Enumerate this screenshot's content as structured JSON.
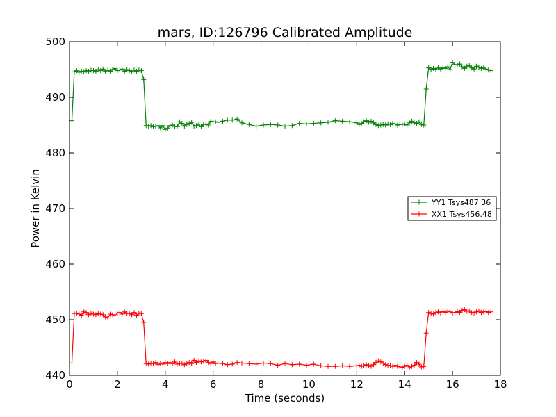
{
  "chart_data": {
    "type": "line",
    "title": "mars, ID:126796 Calibrated Amplitude",
    "xlabel": "Time (seconds)",
    "ylabel": "Power in Kelvin",
    "xlim": [
      0,
      18
    ],
    "ylim": [
      440,
      500
    ],
    "xticks": [
      0,
      2,
      4,
      6,
      8,
      10,
      12,
      14,
      16,
      18
    ],
    "yticks": [
      440,
      450,
      460,
      470,
      480,
      490,
      500
    ],
    "grid": false,
    "legend_position": "center-right",
    "series": [
      {
        "name": "YY1 Tsys487.36",
        "color": "#008000",
        "marker": "plus",
        "x": [
          0.1,
          0.2,
          0.3,
          0.4,
          0.5,
          0.6,
          0.7,
          0.8,
          0.9,
          1.0,
          1.1,
          1.2,
          1.3,
          1.4,
          1.5,
          1.6,
          1.7,
          1.8,
          1.9,
          2.0,
          2.1,
          2.2,
          2.3,
          2.4,
          2.5,
          2.6,
          2.7,
          2.8,
          2.9,
          3.0,
          3.1,
          3.2,
          3.3,
          3.4,
          3.5,
          3.6,
          3.7,
          3.8,
          3.9,
          4.0,
          4.1,
          4.2,
          4.3,
          4.4,
          4.5,
          4.6,
          4.7,
          4.8,
          4.9,
          5.0,
          5.1,
          5.2,
          5.3,
          5.4,
          5.5,
          5.6,
          5.7,
          5.8,
          5.9,
          6.0,
          6.1,
          6.2,
          6.4,
          6.6,
          6.8,
          7.0,
          7.2,
          7.5,
          7.8,
          8.1,
          8.4,
          8.7,
          9.0,
          9.3,
          9.6,
          9.9,
          10.2,
          10.5,
          10.8,
          11.1,
          11.4,
          11.7,
          12.0,
          12.1,
          12.2,
          12.3,
          12.4,
          12.5,
          12.6,
          12.7,
          12.8,
          12.9,
          13.0,
          13.1,
          13.2,
          13.3,
          13.4,
          13.5,
          13.6,
          13.7,
          13.8,
          13.9,
          14.0,
          14.1,
          14.2,
          14.3,
          14.4,
          14.5,
          14.6,
          14.7,
          14.8,
          14.9,
          15.0,
          15.1,
          15.2,
          15.3,
          15.4,
          15.5,
          15.6,
          15.7,
          15.8,
          15.9,
          16.0,
          16.1,
          16.2,
          16.3,
          16.4,
          16.5,
          16.6,
          16.7,
          16.8,
          16.9,
          17.0,
          17.1,
          17.2,
          17.3,
          17.4,
          17.5,
          17.6
        ],
        "y": [
          485.8,
          494.6,
          494.8,
          494.5,
          494.7,
          494.6,
          494.8,
          494.7,
          494.9,
          494.8,
          494.7,
          495.0,
          494.8,
          495.1,
          494.6,
          494.9,
          494.7,
          495.0,
          495.2,
          494.8,
          494.9,
          495.1,
          494.7,
          495.0,
          494.8,
          494.6,
          494.9,
          494.7,
          494.9,
          494.8,
          493.2,
          484.9,
          484.8,
          484.9,
          484.7,
          484.8,
          484.9,
          484.5,
          484.9,
          484.2,
          484.4,
          484.9,
          485.0,
          484.8,
          484.7,
          485.6,
          485.3,
          484.8,
          485.1,
          485.3,
          485.5,
          484.8,
          484.9,
          485.2,
          484.7,
          485.1,
          485.2,
          485.0,
          485.7,
          485.6,
          485.6,
          485.5,
          485.7,
          485.9,
          485.9,
          486.1,
          485.4,
          485.1,
          484.8,
          485.0,
          485.1,
          485.0,
          484.8,
          484.9,
          485.3,
          485.2,
          485.3,
          485.4,
          485.5,
          485.8,
          485.7,
          485.6,
          485.4,
          485.1,
          485.3,
          485.6,
          485.8,
          485.5,
          485.7,
          485.4,
          485.1,
          484.9,
          485.0,
          485.1,
          485.0,
          485.2,
          485.1,
          485.3,
          485.2,
          485.0,
          485.1,
          485.1,
          485.2,
          485.0,
          485.4,
          485.7,
          485.4,
          485.3,
          485.6,
          485.1,
          485.0,
          491.5,
          495.3,
          495.0,
          495.2,
          495.0,
          495.4,
          495.1,
          495.3,
          495.2,
          495.5,
          495.0,
          496.3,
          495.9,
          495.8,
          496.0,
          495.5,
          495.2,
          495.6,
          495.8,
          495.3,
          495.1,
          495.6,
          495.4,
          495.2,
          495.4,
          495.1,
          494.9,
          494.8
        ]
      },
      {
        "name": "XX1 Tsys456.48",
        "color": "#ff0000",
        "marker": "plus",
        "x": [
          0.1,
          0.2,
          0.3,
          0.4,
          0.5,
          0.6,
          0.7,
          0.8,
          0.9,
          1.0,
          1.1,
          1.2,
          1.3,
          1.4,
          1.5,
          1.6,
          1.7,
          1.8,
          1.9,
          2.0,
          2.1,
          2.2,
          2.3,
          2.4,
          2.5,
          2.6,
          2.7,
          2.8,
          2.9,
          3.0,
          3.1,
          3.2,
          3.3,
          3.4,
          3.5,
          3.6,
          3.7,
          3.8,
          3.9,
          4.0,
          4.1,
          4.2,
          4.3,
          4.4,
          4.5,
          4.6,
          4.7,
          4.8,
          4.9,
          5.0,
          5.1,
          5.2,
          5.3,
          5.4,
          5.5,
          5.6,
          5.7,
          5.8,
          5.9,
          6.0,
          6.1,
          6.2,
          6.4,
          6.6,
          6.8,
          7.0,
          7.2,
          7.5,
          7.8,
          8.1,
          8.4,
          8.7,
          9.0,
          9.3,
          9.6,
          9.9,
          10.2,
          10.5,
          10.8,
          11.1,
          11.4,
          11.7,
          12.0,
          12.1,
          12.2,
          12.3,
          12.4,
          12.5,
          12.6,
          12.7,
          12.8,
          12.9,
          13.0,
          13.1,
          13.2,
          13.3,
          13.4,
          13.5,
          13.6,
          13.7,
          13.8,
          13.9,
          14.0,
          14.1,
          14.2,
          14.3,
          14.4,
          14.5,
          14.6,
          14.7,
          14.8,
          14.9,
          15.0,
          15.1,
          15.2,
          15.3,
          15.4,
          15.5,
          15.6,
          15.7,
          15.8,
          15.9,
          16.0,
          16.1,
          16.2,
          16.3,
          16.4,
          16.5,
          16.6,
          16.7,
          16.8,
          16.9,
          17.0,
          17.1,
          17.2,
          17.3,
          17.4,
          17.5,
          17.6
        ],
        "y": [
          442.2,
          451.1,
          451.2,
          451.0,
          450.8,
          451.4,
          451.3,
          450.9,
          451.2,
          451.0,
          450.9,
          451.1,
          451.0,
          450.9,
          450.5,
          450.3,
          451.0,
          450.9,
          450.7,
          451.2,
          451.3,
          451.0,
          451.4,
          451.1,
          451.2,
          450.9,
          451.3,
          450.8,
          451.2,
          451.1,
          449.5,
          442.1,
          442.0,
          442.2,
          442.1,
          442.3,
          441.9,
          442.2,
          442.0,
          442.3,
          442.1,
          442.3,
          442.1,
          442.4,
          442.0,
          442.1,
          442.2,
          441.9,
          442.1,
          442.3,
          442.1,
          442.7,
          442.3,
          442.6,
          442.4,
          442.5,
          442.7,
          442.3,
          442.1,
          442.4,
          442.1,
          442.2,
          442.1,
          441.9,
          442.0,
          442.3,
          442.2,
          442.1,
          442.0,
          442.2,
          442.1,
          441.8,
          442.1,
          441.9,
          442.0,
          441.8,
          442.0,
          441.7,
          441.6,
          441.6,
          441.7,
          441.6,
          441.7,
          441.8,
          441.6,
          441.7,
          441.9,
          441.8,
          441.6,
          441.9,
          442.3,
          442.6,
          442.4,
          442.2,
          441.9,
          441.8,
          441.7,
          441.6,
          441.8,
          441.6,
          441.5,
          441.4,
          441.6,
          441.8,
          441.3,
          441.6,
          441.8,
          442.3,
          442.0,
          441.5,
          441.6,
          447.6,
          451.3,
          451.1,
          451.0,
          451.3,
          451.4,
          451.2,
          451.5,
          451.3,
          451.6,
          451.4,
          451.2,
          451.3,
          451.5,
          451.3,
          451.7,
          451.8,
          451.5,
          451.6,
          451.3,
          451.2,
          451.4,
          451.6,
          451.3,
          451.4,
          451.5,
          451.3,
          451.4
        ]
      }
    ]
  }
}
